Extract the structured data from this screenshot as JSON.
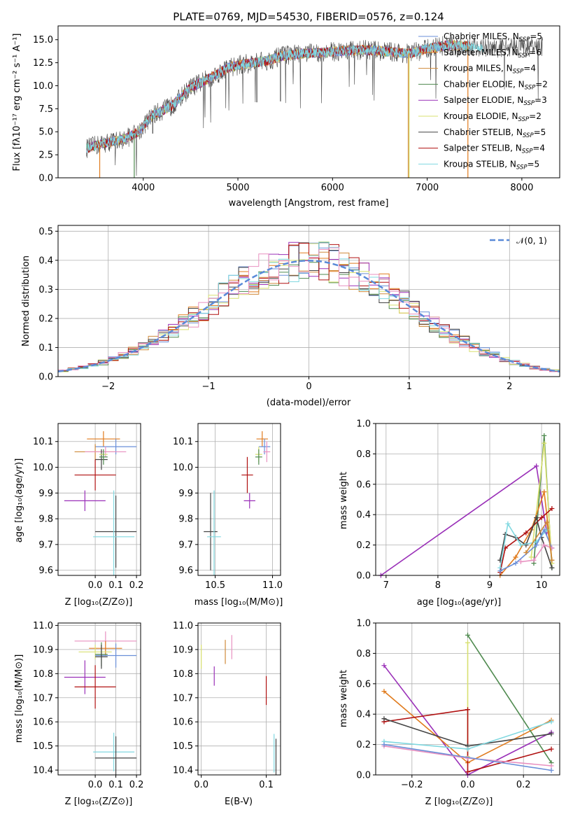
{
  "colors": {
    "Chabrier MILES": "#6a8fd8",
    "Salpeter MILES": "#e07b1d",
    "Kroupa MILES": "#cf8a3a",
    "Chabrier ELODIE": "#4f8a4f",
    "Salpeter ELODIE": "#9a30b8",
    "Kroupa ELODIE": "#d8e070",
    "Chabrier STELIB": "#444444",
    "Salpeter STELIB": "#b01010",
    "Kroupa STELIB": "#80d8e0",
    "pink": "#e890c0",
    "normal": "#5a8ad8"
  },
  "chart_data": [
    {
      "id": "spectrum",
      "type": "line",
      "title": "PLATE=0769, MJD=54530, FIBERID=0576, z=0.124",
      "xlabel": "wavelength [Angstrom, rest frame]",
      "ylabel": "Flux [fλ10⁻¹⁷ erg cm⁻² s⁻¹ A⁻¹]",
      "xlim": [
        3100,
        8400
      ],
      "ylim": [
        0,
        16.5
      ],
      "xticks": [
        "4000",
        "5000",
        "6000",
        "7000",
        "8000"
      ],
      "yticks": [
        "0.0",
        "2.5",
        "5.0",
        "7.5",
        "10.0",
        "12.5",
        "15.0"
      ],
      "legend_position": "right",
      "legend": [
        {
          "series": "Chabrier MILES",
          "label": "Chabrier MILES, N",
          "sub": "SSP",
          "val": "=5"
        },
        {
          "series": "Salpeter MILES",
          "label": "Salpeter MILES, N",
          "sub": "SSP",
          "val": "=6"
        },
        {
          "series": "Kroupa MILES",
          "label": "Kroupa MILES, N",
          "sub": "SSP",
          "val": "=4"
        },
        {
          "series": "Chabrier ELODIE",
          "label": "Chabrier ELODIE, N",
          "sub": "SSP",
          "val": "=2"
        },
        {
          "series": "Salpeter ELODIE",
          "label": "Salpeter ELODIE, N",
          "sub": "SSP",
          "val": "=3"
        },
        {
          "series": "Kroupa ELODIE",
          "label": "Kroupa ELODIE, N",
          "sub": "SSP",
          "val": "=2"
        },
        {
          "series": "Chabrier STELIB",
          "label": "Chabrier STELIB, N",
          "sub": "SSP",
          "val": "=5"
        },
        {
          "series": "Salpeter STELIB",
          "label": "Salpeter STELIB, N",
          "sub": "SSP",
          "val": "=4"
        },
        {
          "series": "Kroupa STELIB",
          "label": "Kroupa STELIB, N",
          "sub": "SSP",
          "val": "=5"
        }
      ],
      "continuum_points": [
        [
          3400,
          3.2
        ],
        [
          3600,
          3.8
        ],
        [
          3800,
          4.2
        ],
        [
          3950,
          5.0
        ],
        [
          4100,
          6.8
        ],
        [
          4300,
          7.8
        ],
        [
          4500,
          9.8
        ],
        [
          4700,
          10.8
        ],
        [
          4900,
          12.0
        ],
        [
          5100,
          12.4
        ],
        [
          5300,
          12.7
        ],
        [
          5500,
          13.3
        ],
        [
          5700,
          13.5
        ],
        [
          6000,
          13.7
        ],
        [
          6300,
          13.9
        ],
        [
          6500,
          13.8
        ],
        [
          6800,
          13.5
        ],
        [
          7000,
          14.0
        ],
        [
          7200,
          14.4
        ],
        [
          7500,
          14.3
        ],
        [
          7700,
          14.0
        ],
        [
          7900,
          14.3
        ],
        [
          8200,
          14.2
        ]
      ]
    },
    {
      "id": "residuals",
      "type": "histogram",
      "xlabel": "(data-model)/error",
      "ylabel": "Normed distribution",
      "xlim": [
        -2.5,
        2.5
      ],
      "ylim": [
        0,
        0.52
      ],
      "xticks": [
        {
          "v": -2,
          "t": "−2"
        },
        {
          "v": -1,
          "t": "−1"
        },
        {
          "v": 0,
          "t": "0"
        },
        {
          "v": 1,
          "t": "1"
        },
        {
          "v": 2,
          "t": "2"
        }
      ],
      "yticks": [
        "0.0",
        "0.1",
        "0.2",
        "0.3",
        "0.4",
        "0.5"
      ],
      "legend_position": "upper right",
      "legend_label": "𝒩(0, 1)",
      "bin_width": 0.1
    },
    {
      "id": "age_vs_Z",
      "type": "errorbar",
      "xlabel": "Z [log₁₀(Z/Z⊙)]",
      "ylabel": "age  [log₁₀(age/yr)]",
      "xlim": [
        -0.18,
        0.22
      ],
      "ylim": [
        9.58,
        10.17
      ],
      "xticks": [
        {
          "v": 0.0,
          "t": "0.0"
        },
        {
          "v": 0.1,
          "t": "0.1"
        },
        {
          "v": 0.2,
          "t": "0.2"
        }
      ],
      "yticks": [
        {
          "v": 9.6,
          "t": "9.6"
        },
        {
          "v": 9.7,
          "t": "9.7"
        },
        {
          "v": 9.8,
          "t": "9.8"
        },
        {
          "v": 9.9,
          "t": "9.9"
        },
        {
          "v": 10.0,
          "t": "10.0"
        },
        {
          "v": 10.1,
          "t": "10.1"
        }
      ],
      "points": [
        {
          "s": "Salpeter MILES",
          "x": 0.04,
          "xe": 0.08,
          "y": 10.11,
          "ye": 0.03
        },
        {
          "s": "Chabrier MILES",
          "x": 0.1,
          "xe": 0.1,
          "y": 10.08,
          "ye": 0.03
        },
        {
          "s": "Kroupa MILES",
          "x": 0.0,
          "xe": 0.1,
          "y": 10.06,
          "ye": 0.03
        },
        {
          "s": "pink",
          "x": 0.05,
          "xe": 0.1,
          "y": 10.06,
          "ye": 0.02
        },
        {
          "s": "Chabrier STELIB",
          "x": 0.03,
          "xe": 0.03,
          "y": 10.03,
          "ye": 0.04
        },
        {
          "s": "Kroupa ELODIE",
          "x": 0.04,
          "xe": 0.02,
          "y": 10.05,
          "ye": 0.02
        },
        {
          "s": "Chabrier ELODIE",
          "x": 0.04,
          "xe": 0.02,
          "y": 10.04,
          "ye": 0.03
        },
        {
          "s": "Salpeter STELIB",
          "x": 0.0,
          "xe": 0.1,
          "y": 9.97,
          "ye": 0.06
        },
        {
          "s": "Salpeter ELODIE",
          "x": -0.05,
          "xe": 0.1,
          "y": 9.87,
          "ye": 0.04
        },
        {
          "s": "Chabrier STELIB",
          "x": 0.1,
          "xe": 0.1,
          "y": 9.75,
          "ye": 0.14
        },
        {
          "s": "Kroupa STELIB",
          "x": 0.09,
          "xe": 0.1,
          "y": 9.73,
          "ye": 0.18
        }
      ]
    },
    {
      "id": "age_vs_mass",
      "type": "errorbar",
      "xlabel": "mass [log₁₀(M/M⊙)]",
      "ylabel": "",
      "xlim": [
        10.35,
        11.07
      ],
      "ylim": [
        9.58,
        10.17
      ],
      "xticks": [
        {
          "v": 10.5,
          "t": "10.5"
        },
        {
          "v": 11.0,
          "t": "11.0"
        }
      ],
      "yticks": [
        {
          "v": 9.6,
          "t": "9.6"
        },
        {
          "v": 9.7,
          "t": "9.7"
        },
        {
          "v": 9.8,
          "t": "9.8"
        },
        {
          "v": 9.9,
          "t": "9.9"
        },
        {
          "v": 10.0,
          "t": "10.0"
        },
        {
          "v": 10.1,
          "t": "10.1"
        }
      ],
      "points": [
        {
          "s": "Salpeter MILES",
          "x": 10.91,
          "xe": 0.05,
          "y": 10.11,
          "ye": 0.03
        },
        {
          "s": "Chabrier MILES",
          "x": 10.93,
          "xe": 0.05,
          "y": 10.08,
          "ye": 0.03
        },
        {
          "s": "pink",
          "x": 10.95,
          "xe": 0.03,
          "y": 10.06,
          "ye": 0.04
        },
        {
          "s": "Kroupa ELODIE",
          "x": 10.88,
          "xe": 0.03,
          "y": 10.05,
          "ye": 0.03
        },
        {
          "s": "Chabrier ELODIE",
          "x": 10.88,
          "xe": 0.03,
          "y": 10.04,
          "ye": 0.03
        },
        {
          "s": "Salpeter STELIB",
          "x": 10.78,
          "xe": 0.05,
          "y": 9.97,
          "ye": 0.07
        },
        {
          "s": "Salpeter ELODIE",
          "x": 10.8,
          "xe": 0.05,
          "y": 9.87,
          "ye": 0.03
        },
        {
          "s": "Chabrier STELIB",
          "x": 10.46,
          "xe": 0.06,
          "y": 9.75,
          "ye": 0.15
        },
        {
          "s": "Kroupa STELIB",
          "x": 10.49,
          "xe": 0.06,
          "y": 9.73,
          "ye": 0.18
        }
      ]
    },
    {
      "id": "weight_vs_age",
      "type": "line",
      "xlabel": "age  [log₁₀(age/yr)]",
      "ylabel": "mass weight",
      "xlim": [
        6.8,
        10.35
      ],
      "ylim": [
        0,
        1.0
      ],
      "xticks": [
        {
          "v": 7,
          "t": "7"
        },
        {
          "v": 8,
          "t": "8"
        },
        {
          "v": 9,
          "t": "9"
        },
        {
          "v": 10,
          "t": "10"
        }
      ],
      "yticks": [
        {
          "v": 0,
          "t": "0.0"
        },
        {
          "v": 0.2,
          "t": "0.2"
        },
        {
          "v": 0.4,
          "t": "0.4"
        },
        {
          "v": 0.6,
          "t": "0.6"
        },
        {
          "v": 0.8,
          "t": "0.8"
        },
        {
          "v": 1.0,
          "t": "1.0"
        }
      ],
      "series": [
        {
          "s": "Salpeter ELODIE",
          "x": [
            6.9,
            9.9,
            10.1
          ],
          "y": [
            0.0,
            0.72,
            0.28
          ]
        },
        {
          "s": "Chabrier ELODIE",
          "x": [
            9.85,
            10.05,
            10.2
          ],
          "y": [
            0.08,
            0.92,
            0.05
          ]
        },
        {
          "s": "Kroupa ELODIE",
          "x": [
            9.8,
            10.05,
            10.2
          ],
          "y": [
            0.12,
            0.87,
            0.08
          ]
        },
        {
          "s": "Salpeter MILES",
          "x": [
            9.2,
            9.5,
            9.8,
            10.05,
            10.2
          ],
          "y": [
            0.0,
            0.12,
            0.3,
            0.55,
            0.1
          ]
        },
        {
          "s": "Salpeter STELIB",
          "x": [
            9.2,
            9.3,
            9.7,
            10.0,
            10.2
          ],
          "y": [
            0.02,
            0.18,
            0.28,
            0.38,
            0.44
          ]
        },
        {
          "s": "Chabrier STELIB",
          "x": [
            9.2,
            9.3,
            9.5,
            9.7,
            9.9,
            10.0,
            10.2
          ],
          "y": [
            0.1,
            0.27,
            0.25,
            0.2,
            0.38,
            0.25,
            0.05
          ]
        },
        {
          "s": "Kroupa STELIB",
          "x": [
            9.2,
            9.35,
            9.6,
            9.9,
            10.1
          ],
          "y": [
            0.05,
            0.34,
            0.2,
            0.22,
            0.3
          ]
        },
        {
          "s": "Chabrier MILES",
          "x": [
            9.2,
            9.5,
            9.9,
            10.05,
            10.2
          ],
          "y": [
            0.03,
            0.08,
            0.2,
            0.3,
            0.18
          ]
        },
        {
          "s": "pink",
          "x": [
            9.6,
            9.85,
            10.05,
            10.2
          ],
          "y": [
            0.09,
            0.1,
            0.2,
            0.18
          ]
        },
        {
          "s": "Kroupa MILES",
          "x": [
            9.7,
            10.1,
            10.2
          ],
          "y": [
            0.15,
            0.35,
            0.1
          ]
        }
      ]
    },
    {
      "id": "mass_vs_Z",
      "type": "errorbar",
      "xlabel": "Z [log₁₀(Z/Z⊙)]",
      "ylabel": "mass [log₁₀(M/M⊙)]",
      "xlim": [
        -0.18,
        0.22
      ],
      "ylim": [
        10.38,
        11.01
      ],
      "xticks": [
        {
          "v": 0.0,
          "t": "0.0"
        },
        {
          "v": 0.1,
          "t": "0.1"
        },
        {
          "v": 0.2,
          "t": "0.2"
        }
      ],
      "yticks": [
        {
          "v": 10.4,
          "t": "10.4"
        },
        {
          "v": 10.5,
          "t": "10.5"
        },
        {
          "v": 10.6,
          "t": "10.6"
        },
        {
          "v": 10.7,
          "t": "10.7"
        },
        {
          "v": 10.8,
          "t": "10.8"
        },
        {
          "v": 10.9,
          "t": "10.9"
        },
        {
          "v": 11.0,
          "t": "11.0"
        }
      ],
      "points": [
        {
          "s": "pink",
          "x": 0.05,
          "xe": 0.15,
          "y": 10.935,
          "ye": 0.04
        },
        {
          "s": "Salpeter MILES",
          "x": 0.05,
          "xe": 0.08,
          "y": 10.905,
          "ye": 0.03
        },
        {
          "s": "Kroupa ELODIE",
          "x": 0.0,
          "xe": 0.08,
          "y": 10.89,
          "ye": 0.03
        },
        {
          "s": "Chabrier MILES",
          "x": 0.1,
          "xe": 0.1,
          "y": 10.875,
          "ye": 0.05
        },
        {
          "s": "Chabrier ELODIE",
          "x": 0.03,
          "xe": 0.03,
          "y": 10.88,
          "ye": 0.05
        },
        {
          "s": "Chabrier STELIB",
          "x": 0.03,
          "xe": 0.03,
          "y": 10.87,
          "ye": 0.05
        },
        {
          "s": "Salpeter ELODIE",
          "x": -0.05,
          "xe": 0.1,
          "y": 10.785,
          "ye": 0.07
        },
        {
          "s": "Salpeter STELIB",
          "x": 0.0,
          "xe": 0.1,
          "y": 10.745,
          "ye": 0.09
        },
        {
          "s": "Kroupa STELIB",
          "x": 0.09,
          "xe": 0.1,
          "y": 10.475,
          "ye": 0.08
        },
        {
          "s": "Chabrier STELIB",
          "x": 0.1,
          "xe": 0.1,
          "y": 10.45,
          "ye": 0.09
        }
      ]
    },
    {
      "id": "mass_vs_ebv",
      "type": "errorbar",
      "xlabel": "E(B-V)",
      "ylabel": "",
      "xlim": [
        -0.005,
        0.122
      ],
      "ylim": [
        10.38,
        11.01
      ],
      "xticks": [
        {
          "v": 0.0,
          "t": "0.0"
        },
        {
          "v": 0.1,
          "t": "0.1"
        }
      ],
      "yticks": [
        {
          "v": 10.4,
          "t": "10.4"
        },
        {
          "v": 10.5,
          "t": "10.5"
        },
        {
          "v": 10.6,
          "t": "10.6"
        },
        {
          "v": 10.7,
          "t": "10.7"
        },
        {
          "v": 10.8,
          "t": "10.8"
        },
        {
          "v": 10.9,
          "t": "10.9"
        },
        {
          "v": 11.0,
          "t": "11.0"
        }
      ],
      "points": [
        {
          "s": "Kroupa ELODIE",
          "x": 0.0,
          "xe": 0,
          "y": 10.87,
          "ye": 0.05
        },
        {
          "s": "Salpeter ELODIE",
          "x": 0.02,
          "xe": 0,
          "y": 10.79,
          "ye": 0.04
        },
        {
          "s": "Kroupa MILES",
          "x": 0.037,
          "xe": 0,
          "y": 10.89,
          "ye": 0.05
        },
        {
          "s": "pink",
          "x": 0.047,
          "xe": 0,
          "y": 10.91,
          "ye": 0.05
        },
        {
          "s": "Salpeter STELIB",
          "x": 0.1,
          "xe": 0,
          "y": 10.73,
          "ye": 0.06
        },
        {
          "s": "Kroupa STELIB",
          "x": 0.112,
          "xe": 0,
          "y": 10.47,
          "ye": 0.08
        },
        {
          "s": "Chabrier STELIB",
          "x": 0.115,
          "xe": 0,
          "y": 10.45,
          "ye": 0.08
        }
      ]
    },
    {
      "id": "weight_vs_Z",
      "type": "line",
      "xlabel": "Z [log₁₀(Z/Z⊙)]",
      "ylabel": "mass weight",
      "xlim": [
        -0.33,
        0.33
      ],
      "ylim": [
        0,
        1.0
      ],
      "xticks": [
        {
          "v": -0.2,
          "t": "−0.2"
        },
        {
          "v": 0.0,
          "t": "0.0"
        },
        {
          "v": 0.2,
          "t": "0.2"
        }
      ],
      "yticks": [
        {
          "v": 0,
          "t": "0.0"
        },
        {
          "v": 0.2,
          "t": "0.2"
        },
        {
          "v": 0.4,
          "t": "0.4"
        },
        {
          "v": 0.6,
          "t": "0.6"
        },
        {
          "v": 0.8,
          "t": "0.8"
        },
        {
          "v": 1.0,
          "t": "1.0"
        }
      ],
      "series": [
        {
          "s": "Salpeter ELODIE",
          "x": [
            -0.3,
            0.0,
            0.3
          ],
          "y": [
            0.72,
            0.0,
            0.28
          ]
        },
        {
          "s": "Salpeter MILES",
          "x": [
            -0.3,
            0.0,
            0.3
          ],
          "y": [
            0.55,
            0.08,
            0.36
          ]
        },
        {
          "s": "Chabrier ELODIE",
          "x": [
            0.0,
            0.3
          ],
          "y": [
            0.92,
            0.08
          ]
        },
        {
          "s": "Kroupa ELODIE",
          "x": [
            0.0,
            0.0
          ],
          "y": [
            0.87,
            0.12
          ]
        },
        {
          "s": "Salpeter STELIB",
          "x": [
            -0.3,
            0.0,
            0.0,
            0.3
          ],
          "y": [
            0.35,
            0.43,
            0.02,
            0.17
          ]
        },
        {
          "s": "Chabrier STELIB",
          "x": [
            -0.3,
            0.0,
            0.3
          ],
          "y": [
            0.37,
            0.19,
            0.27
          ]
        },
        {
          "s": "Kroupa STELIB",
          "x": [
            -0.3,
            0.0,
            0.3
          ],
          "y": [
            0.22,
            0.17,
            0.35
          ]
        },
        {
          "s": "pink",
          "x": [
            -0.3,
            0.0,
            0.3
          ],
          "y": [
            0.19,
            0.11,
            0.06
          ]
        },
        {
          "s": "Chabrier MILES",
          "x": [
            -0.3,
            0.3
          ],
          "y": [
            0.2,
            0.03
          ]
        }
      ]
    }
  ]
}
